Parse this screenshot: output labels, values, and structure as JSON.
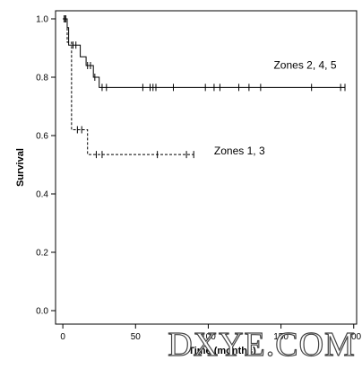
{
  "chart_data": {
    "type": "line",
    "title": "",
    "xlabel": "Time (months)",
    "ylabel": "Survival",
    "xlim": [
      -5,
      202
    ],
    "ylim": [
      0,
      1.0
    ],
    "x_ticks": [
      {
        "value": 0,
        "label": "0"
      },
      {
        "value": 50,
        "label": "50"
      },
      {
        "value": 100,
        "label": "100"
      },
      {
        "value": 150,
        "label": "150"
      },
      {
        "value": 200,
        "label": "200"
      }
    ],
    "y_ticks": [
      {
        "value": 0.0,
        "label": "0.0"
      },
      {
        "value": 0.2,
        "label": "0.2"
      },
      {
        "value": 0.4,
        "label": "0.4"
      },
      {
        "value": 0.6,
        "label": "0.6"
      },
      {
        "value": 0.8,
        "label": "0.8"
      },
      {
        "value": 1.0,
        "label": "1.0"
      }
    ],
    "grid": false,
    "series": [
      {
        "label": "Zones 2, 4, 5",
        "label_position": {
          "x": 145,
          "y": 0.83
        },
        "line_style": "solid",
        "color": "#000000",
        "steps": [
          {
            "x": 0,
            "y": 1.0
          },
          {
            "x": 3,
            "y": 0.97
          },
          {
            "x": 4,
            "y": 0.91
          },
          {
            "x": 12,
            "y": 0.87
          },
          {
            "x": 16,
            "y": 0.84
          },
          {
            "x": 21,
            "y": 0.8
          },
          {
            "x": 25,
            "y": 0.765
          },
          {
            "x": 194,
            "y": 0.765
          }
        ],
        "censors": [
          {
            "x": 1,
            "y": 1.0
          },
          {
            "x": 2,
            "y": 1.0
          },
          {
            "x": 7,
            "y": 0.91
          },
          {
            "x": 9,
            "y": 0.91
          },
          {
            "x": 17,
            "y": 0.84
          },
          {
            "x": 19,
            "y": 0.84
          },
          {
            "x": 22,
            "y": 0.8
          },
          {
            "x": 27,
            "y": 0.765
          },
          {
            "x": 30,
            "y": 0.765
          },
          {
            "x": 55,
            "y": 0.765
          },
          {
            "x": 60,
            "y": 0.765
          },
          {
            "x": 62,
            "y": 0.765
          },
          {
            "x": 64,
            "y": 0.765
          },
          {
            "x": 76,
            "y": 0.765
          },
          {
            "x": 98,
            "y": 0.765
          },
          {
            "x": 104,
            "y": 0.765
          },
          {
            "x": 108,
            "y": 0.765
          },
          {
            "x": 121,
            "y": 0.765
          },
          {
            "x": 128,
            "y": 0.765
          },
          {
            "x": 136,
            "y": 0.765
          },
          {
            "x": 171,
            "y": 0.765
          },
          {
            "x": 191,
            "y": 0.765
          },
          {
            "x": 194,
            "y": 0.765
          }
        ]
      },
      {
        "label": "Zones 1, 3",
        "label_position": {
          "x": 104,
          "y": 0.535
        },
        "line_style": "dashed",
        "color": "#000000",
        "steps": [
          {
            "x": 0,
            "y": 1.0
          },
          {
            "x": 3,
            "y": 0.92
          },
          {
            "x": 6,
            "y": 0.62
          },
          {
            "x": 17,
            "y": 0.535
          },
          {
            "x": 90,
            "y": 0.535
          }
        ],
        "censors": [
          {
            "x": 1,
            "y": 1.0
          },
          {
            "x": 2,
            "y": 1.0
          },
          {
            "x": 10,
            "y": 0.62
          },
          {
            "x": 13,
            "y": 0.62
          },
          {
            "x": 23,
            "y": 0.535
          },
          {
            "x": 27,
            "y": 0.535
          },
          {
            "x": 65,
            "y": 0.535
          },
          {
            "x": 85,
            "y": 0.535
          },
          {
            "x": 90,
            "y": 0.535
          }
        ]
      }
    ]
  },
  "watermark": {
    "text": "DXYE.COM"
  }
}
